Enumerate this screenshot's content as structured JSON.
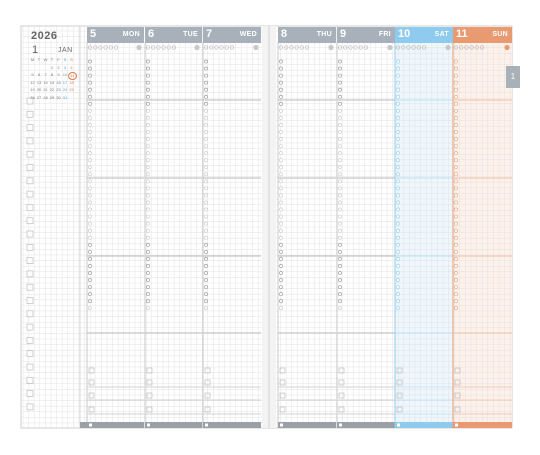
{
  "calendar": {
    "year": "2026",
    "month": "1",
    "month_name": "JAN"
  },
  "mini_cal": {
    "weekdays": [
      "M",
      "T",
      "W",
      "T",
      "F",
      "S",
      "S"
    ],
    "weeks": [
      [
        "",
        "",
        "",
        "1",
        "2",
        "3",
        "4"
      ],
      [
        "5",
        "6",
        "7",
        "8",
        "9",
        "10",
        "11"
      ],
      [
        "12",
        "13",
        "14",
        "15",
        "16",
        "17",
        "18"
      ],
      [
        "19",
        "20",
        "21",
        "22",
        "23",
        "24",
        "25"
      ],
      [
        "26",
        "27",
        "28",
        "29",
        "30",
        "31",
        ""
      ]
    ]
  },
  "days": [
    {
      "num": "5",
      "wd": "MON"
    },
    {
      "num": "6",
      "wd": "TUE"
    },
    {
      "num": "7",
      "wd": "WED"
    },
    {
      "num": "8",
      "wd": "THU"
    },
    {
      "num": "9",
      "wd": "FRI"
    },
    {
      "num": "10",
      "wd": "SAT"
    },
    {
      "num": "11",
      "wd": "SUN"
    }
  ],
  "side_tab": "1",
  "colors": {
    "weekday": "#a8b1b9",
    "saturday": "#8ecbee",
    "sunday": "#e99a70",
    "grid": "#e2e2e2"
  }
}
